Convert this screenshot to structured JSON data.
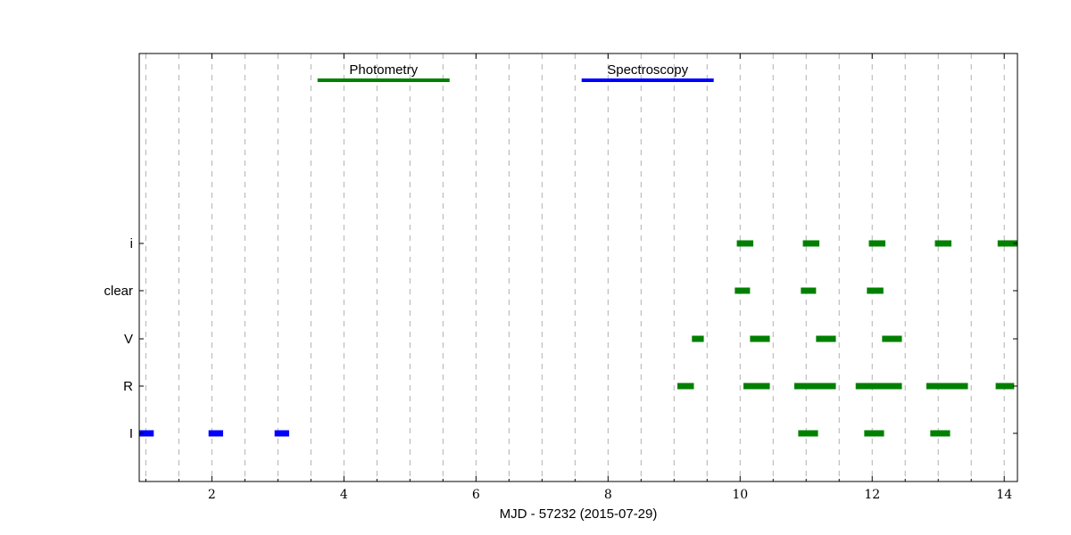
{
  "chart_data": {
    "type": "timeline",
    "xlabel": "MJD - 57232 (2015-07-29)",
    "xlim": [
      0.9,
      14.2
    ],
    "xticks": [
      2,
      4,
      6,
      8,
      10,
      12,
      14
    ],
    "grid": "vertical dashed every 0.5",
    "categories": [
      "i",
      "clear",
      "V",
      "R",
      "I"
    ],
    "legend": [
      {
        "label": "Photometry",
        "color": "#008000",
        "x": [
          3.6,
          5.6
        ]
      },
      {
        "label": "Spectroscopy",
        "color": "#0000ff",
        "x": [
          7.6,
          9.6
        ]
      }
    ],
    "series": [
      {
        "name": "i",
        "color": "#008000",
        "intervals": [
          [
            9.95,
            10.2
          ],
          [
            10.95,
            11.2
          ],
          [
            11.95,
            12.2
          ],
          [
            12.95,
            13.2
          ],
          [
            13.9,
            14.2
          ]
        ]
      },
      {
        "name": "clear",
        "color": "#008000",
        "intervals": [
          [
            9.92,
            10.15
          ],
          [
            10.92,
            11.15
          ],
          [
            11.92,
            12.17
          ]
        ]
      },
      {
        "name": "V",
        "color": "#008000",
        "intervals": [
          [
            9.27,
            9.45
          ],
          [
            10.15,
            10.45
          ],
          [
            11.15,
            11.45
          ],
          [
            12.15,
            12.45
          ]
        ]
      },
      {
        "name": "R",
        "color": "#008000",
        "intervals": [
          [
            9.05,
            9.3
          ],
          [
            10.05,
            10.45
          ],
          [
            10.82,
            11.45
          ],
          [
            11.75,
            12.45
          ],
          [
            12.82,
            13.45
          ],
          [
            13.87,
            14.15
          ]
        ]
      },
      {
        "name": "I",
        "color": "#0000ff",
        "intervals": [
          [
            0.9,
            1.12
          ],
          [
            1.95,
            2.17
          ],
          [
            2.95,
            3.17
          ]
        ]
      },
      {
        "name": "I",
        "color": "#008000",
        "intervals": [
          [
            10.88,
            11.18
          ],
          [
            11.88,
            12.18
          ],
          [
            12.88,
            13.18
          ]
        ]
      }
    ]
  }
}
